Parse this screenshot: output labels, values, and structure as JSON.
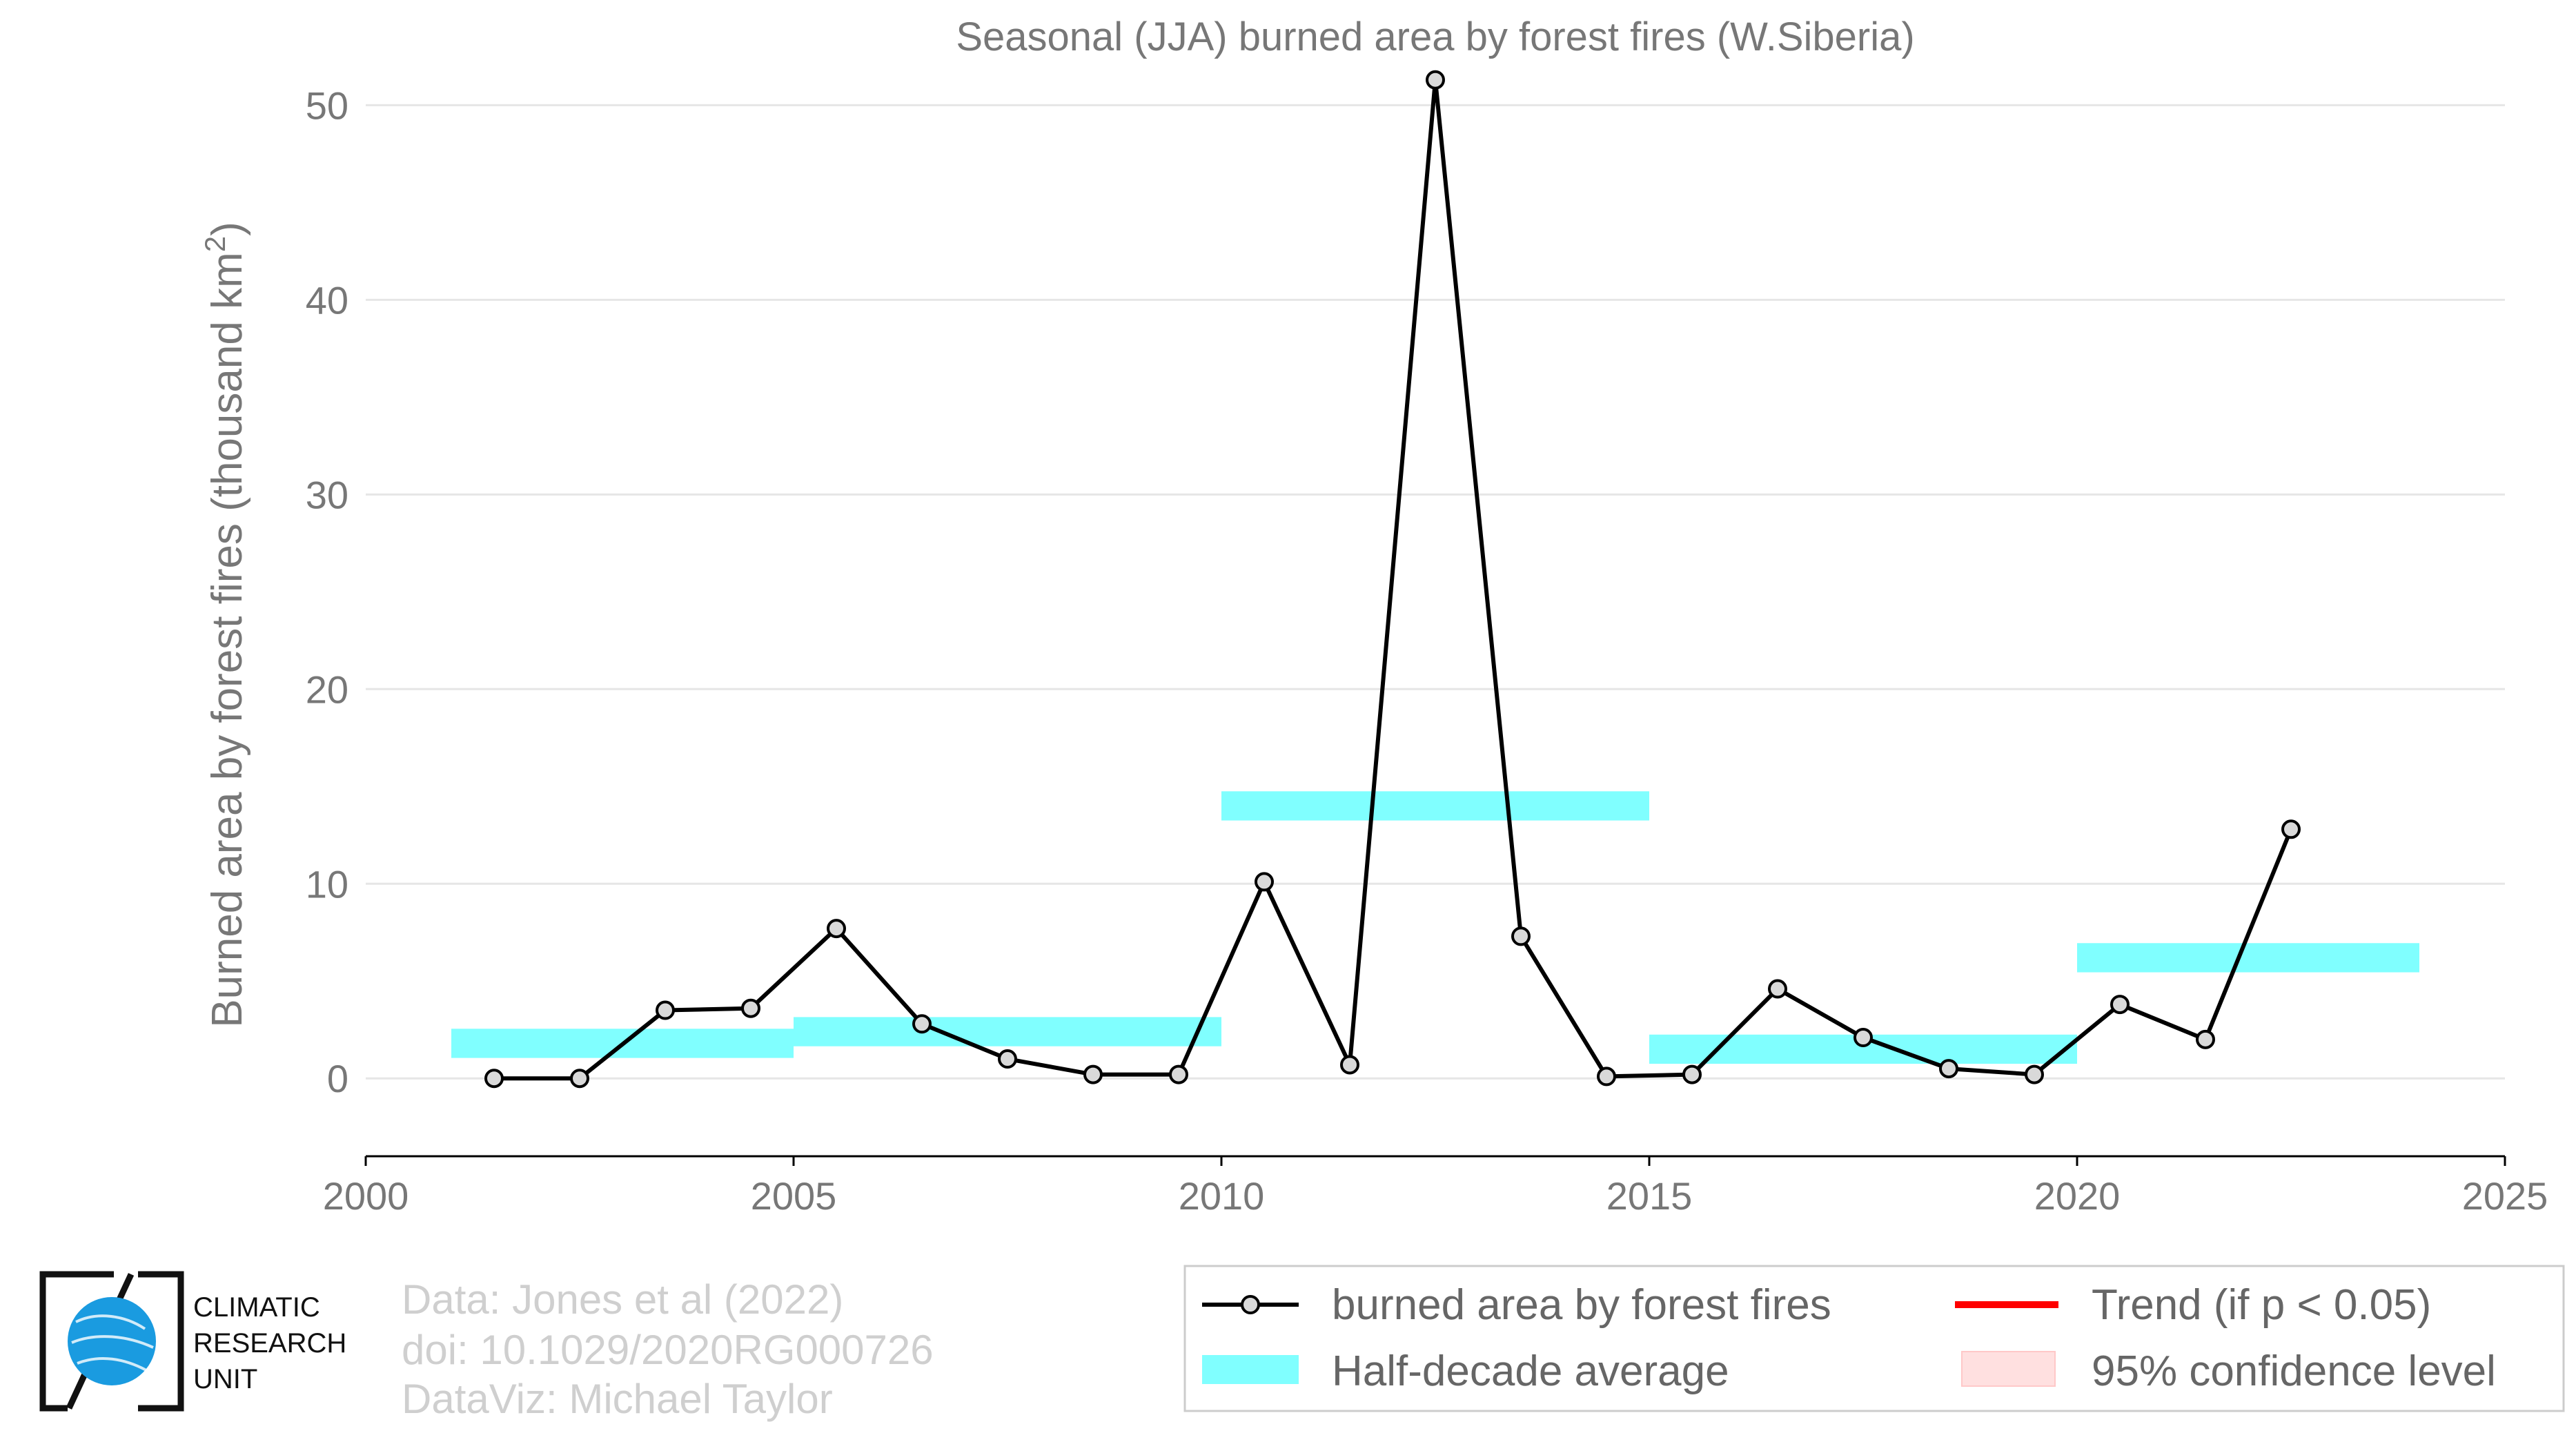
{
  "chart_data": {
    "type": "line",
    "title": "Seasonal (JJA) burned area by forest fires (W.Siberia)",
    "ylabel": "Burned area by forest fires (thousand km",
    "ylabel_sup": "2",
    "ylabel_close": ")",
    "xlim": [
      2000,
      2025
    ],
    "ylim": [
      -4,
      52
    ],
    "xticks": [
      "2000",
      "2005",
      "2010",
      "2015",
      "2020",
      "2025"
    ],
    "yticks": [
      "0",
      "10",
      "20",
      "30",
      "40",
      "50"
    ],
    "series": [
      {
        "name": "burned area by forest fires",
        "color": "#000000",
        "x": [
          2001.5,
          2002.5,
          2003.5,
          2004.5,
          2005.5,
          2006.5,
          2007.5,
          2008.5,
          2009.5,
          2010.5,
          2011.5,
          2012.5,
          2013.5,
          2014.5,
          2015.5,
          2016.5,
          2017.5,
          2018.5,
          2019.5,
          2020.5,
          2021.5,
          2022.5
        ],
        "y": [
          0.0,
          0.0,
          3.5,
          3.6,
          7.7,
          2.8,
          1.0,
          0.2,
          0.2,
          10.1,
          0.7,
          51.3,
          7.3,
          0.1,
          0.2,
          4.6,
          2.1,
          0.5,
          0.2,
          3.8,
          2.0,
          12.8
        ]
      }
    ],
    "half_decade_average": {
      "name": "Half-decade average",
      "color": "#80ffff",
      "segments": [
        {
          "start": 2001,
          "end": 2005,
          "value": 1.8
        },
        {
          "start": 2005,
          "end": 2010,
          "value": 2.4
        },
        {
          "start": 2010,
          "end": 2015,
          "value": 14.0
        },
        {
          "start": 2015,
          "end": 2020,
          "value": 1.5
        },
        {
          "start": 2020,
          "end": 2024,
          "value": 6.2
        }
      ]
    },
    "legend": {
      "position": "bottom-right",
      "entries": [
        {
          "label": "burned area by forest fires",
          "kind": "line-marker",
          "color": "#000000"
        },
        {
          "label": "Trend (if p < 0.05)",
          "kind": "line",
          "color": "#ff0000"
        },
        {
          "label": "Half-decade average",
          "kind": "band",
          "color": "#80ffff"
        },
        {
          "label": "95% confidence level",
          "kind": "band",
          "color": "#ffe0e0"
        }
      ]
    },
    "grid": "horizontal"
  },
  "credits": {
    "line1": "Data: Jones et al (2022)",
    "line2": "doi: 10.1029/2020RG000726",
    "line3": "DataViz: Michael Taylor"
  },
  "logo": {
    "line1": "CLIMATIC",
    "line2": "RESEARCH",
    "line3": "UNIT"
  }
}
